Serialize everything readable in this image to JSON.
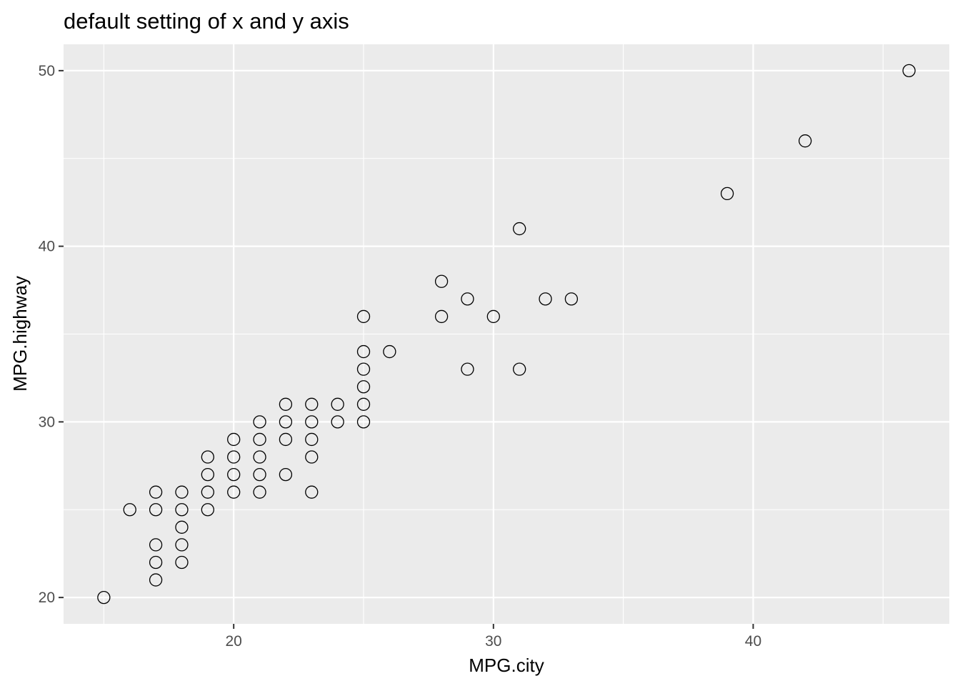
{
  "chart_data": {
    "type": "scatter",
    "title": "default setting of x and y axis",
    "xlabel": "MPG.city",
    "ylabel": "MPG.highway",
    "xlim": [
      13.45,
      47.55
    ],
    "ylim": [
      18.5,
      51.5
    ],
    "x_ticks": [
      20,
      30,
      40
    ],
    "y_ticks": [
      20,
      30,
      40,
      50
    ],
    "x_minor_ticks": [
      15,
      25,
      35,
      45
    ],
    "y_minor_ticks": [
      25,
      35,
      45
    ],
    "grid": true,
    "legend": "none",
    "colors": {
      "panel": "#ebebeb",
      "grid": "#ffffff",
      "point_stroke": "#000000",
      "tick_text": "#4d4d4d"
    },
    "points": [
      {
        "x": 15,
        "y": 20
      },
      {
        "x": 16,
        "y": 25
      },
      {
        "x": 17,
        "y": 21
      },
      {
        "x": 17,
        "y": 22
      },
      {
        "x": 17,
        "y": 23
      },
      {
        "x": 17,
        "y": 25
      },
      {
        "x": 17,
        "y": 26
      },
      {
        "x": 18,
        "y": 22
      },
      {
        "x": 18,
        "y": 23
      },
      {
        "x": 18,
        "y": 24
      },
      {
        "x": 18,
        "y": 25
      },
      {
        "x": 18,
        "y": 26
      },
      {
        "x": 19,
        "y": 25
      },
      {
        "x": 19,
        "y": 26
      },
      {
        "x": 19,
        "y": 27
      },
      {
        "x": 19,
        "y": 28
      },
      {
        "x": 20,
        "y": 26
      },
      {
        "x": 20,
        "y": 27
      },
      {
        "x": 20,
        "y": 28
      },
      {
        "x": 20,
        "y": 29
      },
      {
        "x": 21,
        "y": 26
      },
      {
        "x": 21,
        "y": 27
      },
      {
        "x": 21,
        "y": 28
      },
      {
        "x": 21,
        "y": 29
      },
      {
        "x": 21,
        "y": 30
      },
      {
        "x": 22,
        "y": 27
      },
      {
        "x": 22,
        "y": 29
      },
      {
        "x": 22,
        "y": 30
      },
      {
        "x": 22,
        "y": 31
      },
      {
        "x": 23,
        "y": 26
      },
      {
        "x": 23,
        "y": 28
      },
      {
        "x": 23,
        "y": 29
      },
      {
        "x": 23,
        "y": 30
      },
      {
        "x": 23,
        "y": 31
      },
      {
        "x": 24,
        "y": 30
      },
      {
        "x": 24,
        "y": 31
      },
      {
        "x": 25,
        "y": 30
      },
      {
        "x": 25,
        "y": 31
      },
      {
        "x": 25,
        "y": 32
      },
      {
        "x": 25,
        "y": 33
      },
      {
        "x": 25,
        "y": 34
      },
      {
        "x": 25,
        "y": 36
      },
      {
        "x": 26,
        "y": 34
      },
      {
        "x": 28,
        "y": 36
      },
      {
        "x": 28,
        "y": 38
      },
      {
        "x": 29,
        "y": 33
      },
      {
        "x": 29,
        "y": 37
      },
      {
        "x": 30,
        "y": 36
      },
      {
        "x": 31,
        "y": 33
      },
      {
        "x": 31,
        "y": 41
      },
      {
        "x": 32,
        "y": 37
      },
      {
        "x": 33,
        "y": 37
      },
      {
        "x": 39,
        "y": 43
      },
      {
        "x": 42,
        "y": 46
      },
      {
        "x": 46,
        "y": 50
      }
    ]
  }
}
